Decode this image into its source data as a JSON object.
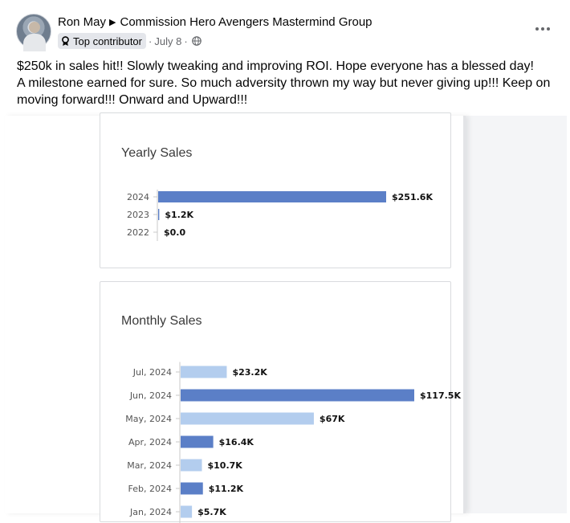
{
  "post": {
    "author": "Ron May",
    "group": "Commission Hero Avengers Mastermind Group",
    "badge_label": "Top contributor",
    "date": "July 8",
    "meta_dot": "·",
    "meta_dot2": "·",
    "text_line1": "$250k in sales hit!! Slowly tweaking and improving ROI.  Hope everyone has a blessed day!",
    "text_line2": "A milestone earned for sure.  So much adversity thrown my way but never giving up!!!  Keep on",
    "text_line3": "moving forward!!! Onward and Upward!!!",
    "icons": {
      "avatar": "profile-photo",
      "separator": "triangle-right-icon",
      "badge": "badge-icon",
      "privacy": "globe-icon",
      "more": "more-horizontal-icon"
    }
  },
  "chart_data": [
    {
      "type": "bar",
      "orientation": "horizontal",
      "title": "Yearly Sales",
      "categories": [
        "2024",
        "2023",
        "2022"
      ],
      "values": [
        251.6,
        1.2,
        0.0
      ],
      "value_labels": [
        "$251.6K",
        "$1.2K",
        "$0.0"
      ],
      "unit": "K USD",
      "xlim": [
        0,
        251.6
      ],
      "colors": [
        "#5b7fc7",
        "#5b7fc7",
        "#5b7fc7"
      ]
    },
    {
      "type": "bar",
      "orientation": "horizontal",
      "title": "Monthly Sales",
      "categories": [
        "Jul, 2024",
        "Jun, 2024",
        "May, 2024",
        "Apr, 2024",
        "Mar, 2024",
        "Feb, 2024",
        "Jan, 2024"
      ],
      "values": [
        23.2,
        117.5,
        67.0,
        16.4,
        10.7,
        11.2,
        5.7
      ],
      "value_labels": [
        "$23.2K",
        "$117.5K",
        "$67K",
        "$16.4K",
        "$10.7K",
        "$11.2K",
        "$5.7K"
      ],
      "unit": "K USD",
      "xlim": [
        0,
        117.5
      ],
      "colors": [
        "#b3cdee",
        "#5b7fc7",
        "#b3cdee",
        "#5b7fc7",
        "#b3cdee",
        "#5b7fc7",
        "#b3cdee"
      ]
    }
  ]
}
